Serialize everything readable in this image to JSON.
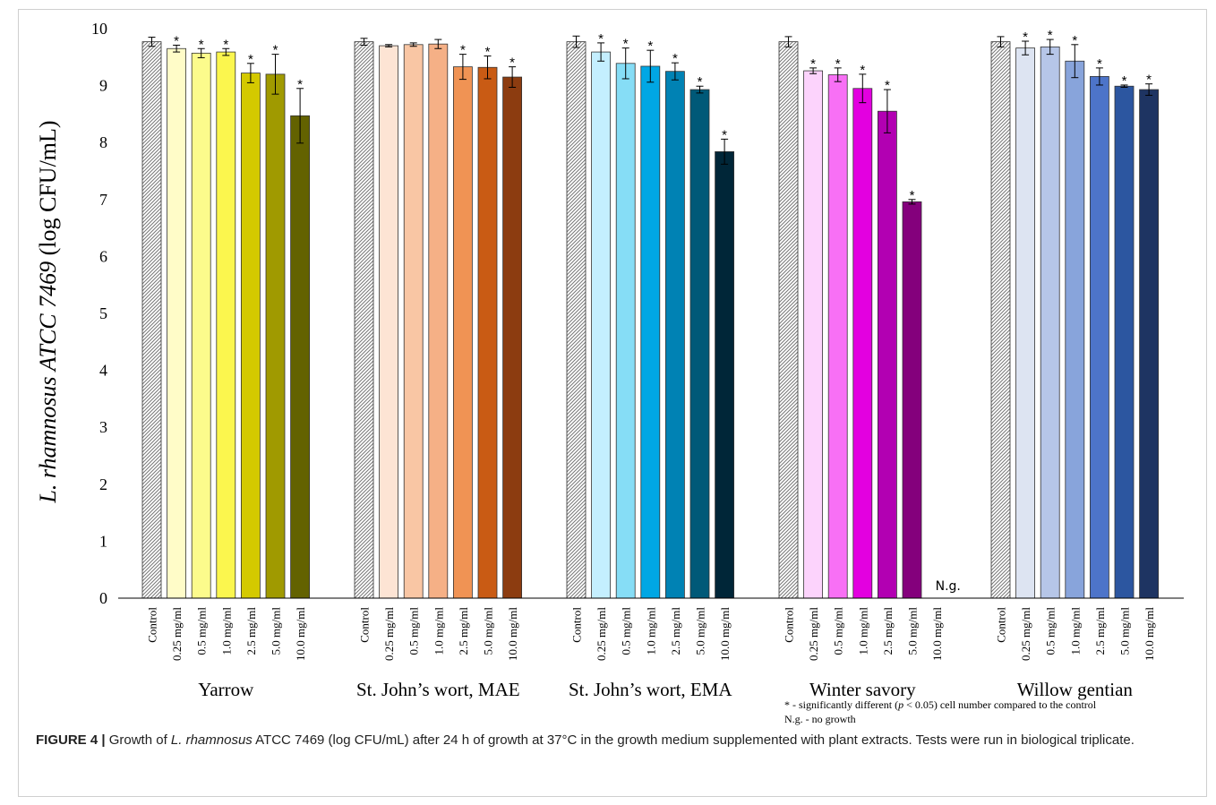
{
  "chart_data": {
    "type": "bar",
    "ylabel_italic": "L. rhamnosus ATCC 7469",
    "ylabel_rest": " (log CFU/mL)",
    "ylim": [
      0,
      10
    ],
    "yticks": [
      0,
      1,
      2,
      3,
      4,
      5,
      6,
      7,
      8,
      9,
      10
    ],
    "category_labels": [
      "Control",
      "0.25 mg/ml",
      "0.5 mg/ml",
      "1.0 mg/ml",
      "2.5 mg/ml",
      "5.0 mg/ml",
      "10.0 mg/ml"
    ],
    "significance_marker": "*",
    "no_growth_marker": "N.g.",
    "groups": [
      {
        "name": "Yarrow",
        "values": [
          9.77,
          9.65,
          9.57,
          9.59,
          9.22,
          9.2,
          8.47
        ],
        "errors": [
          0.08,
          0.06,
          0.08,
          0.06,
          0.17,
          0.35,
          0.48
        ],
        "significant": [
          false,
          true,
          true,
          true,
          true,
          true,
          true
        ],
        "colors": [
          "hatch",
          "#fffcc8",
          "#fcfb8c",
          "#fbf64e",
          "#d4c900",
          "#a09a00",
          "#636200"
        ]
      },
      {
        "name": "St. John’s wort, MAE",
        "values": [
          9.77,
          9.7,
          9.72,
          9.73,
          9.33,
          9.32,
          9.15
        ],
        "errors": [
          0.06,
          0.02,
          0.03,
          0.08,
          0.22,
          0.2,
          0.18
        ],
        "significant": [
          false,
          false,
          false,
          false,
          true,
          true,
          true
        ],
        "colors": [
          "hatch",
          "#fde4d4",
          "#f9c6a4",
          "#f5b086",
          "#f09354",
          "#c95b14",
          "#8c3c10"
        ]
      },
      {
        "name": "St. John’s wort, EMA",
        "values": [
          9.77,
          9.59,
          9.39,
          9.34,
          9.25,
          8.93,
          7.84
        ],
        "errors": [
          0.1,
          0.16,
          0.27,
          0.28,
          0.15,
          0.06,
          0.22
        ],
        "significant": [
          false,
          true,
          true,
          true,
          true,
          true,
          true
        ],
        "colors": [
          "hatch",
          "#c4efff",
          "#86ddf6",
          "#00a7e4",
          "#0082b4",
          "#005978",
          "#002638"
        ]
      },
      {
        "name": "Winter savory",
        "values": [
          9.77,
          9.26,
          9.19,
          8.95,
          8.55,
          6.96,
          0
        ],
        "errors": [
          0.09,
          0.05,
          0.12,
          0.25,
          0.38,
          0.04,
          0
        ],
        "significant": [
          false,
          true,
          true,
          true,
          true,
          true,
          false
        ],
        "no_growth": [
          false,
          false,
          false,
          false,
          false,
          false,
          true
        ],
        "colors": [
          "hatch",
          "#fcd3fc",
          "#f870f5",
          "#e300e0",
          "#b200b2",
          "#84007c",
          "#84007c"
        ]
      },
      {
        "name": "Willow gentian",
        "values": [
          9.77,
          9.66,
          9.68,
          9.43,
          9.16,
          8.99,
          8.93
        ],
        "errors": [
          0.09,
          0.12,
          0.13,
          0.29,
          0.15,
          0.02,
          0.1
        ],
        "significant": [
          false,
          true,
          true,
          true,
          true,
          true,
          true
        ],
        "colors": [
          "hatch",
          "#dde4f2",
          "#b6c6e8",
          "#88a4db",
          "#4d74c9",
          "#2c56a0",
          "#1e3462"
        ]
      }
    ],
    "footnote_line1_a": "* - significantly different (",
    "footnote_line1_p": "p",
    "footnote_line1_b": " < 0.05) cell number compared to the control",
    "footnote_line2": "N.g. - no growth"
  },
  "caption": {
    "label": "FIGURE 4 |",
    "text_before": " Growth of ",
    "species": "L. rhamnosus",
    "text_after": " ATCC 7469 (log CFU/mL) after 24 h of growth at 37°C in the growth medium supplemented with plant extracts. Tests were run in biological triplicate."
  }
}
